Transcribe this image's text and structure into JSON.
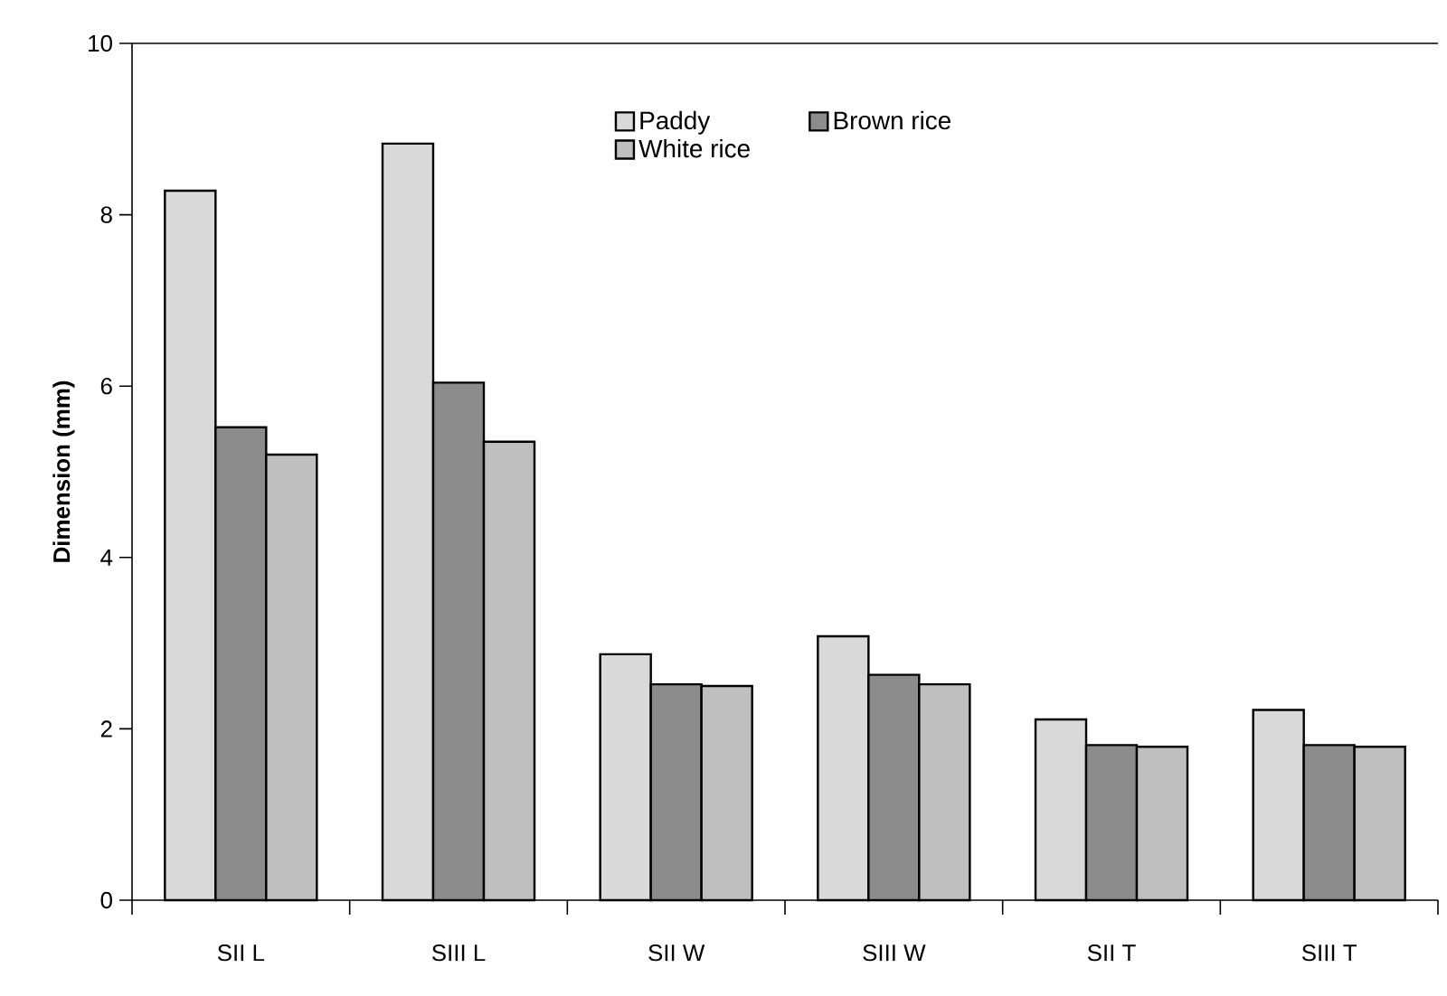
{
  "chart_data": {
    "type": "bar",
    "ylabel": "Dimension (mm)",
    "categories": [
      "SII L",
      "SIII L",
      "SII W",
      "SIII W",
      "SII T",
      "SIII T"
    ],
    "series": [
      {
        "name": "Paddy",
        "color": "#d9d9d9",
        "values": [
          8.28,
          8.83,
          2.87,
          3.08,
          2.11,
          2.22
        ]
      },
      {
        "name": "Brown rice",
        "color": "#8c8c8c",
        "values": [
          5.52,
          6.04,
          2.52,
          2.63,
          1.81,
          1.81
        ]
      },
      {
        "name": "White rice",
        "color": "#bfbfbf",
        "values": [
          5.2,
          5.35,
          2.5,
          2.52,
          1.79,
          1.79
        ]
      }
    ],
    "ylim": [
      0,
      10
    ],
    "yticks": [
      0,
      2,
      4,
      6,
      8,
      10
    ],
    "grid": false,
    "legend": "top"
  }
}
